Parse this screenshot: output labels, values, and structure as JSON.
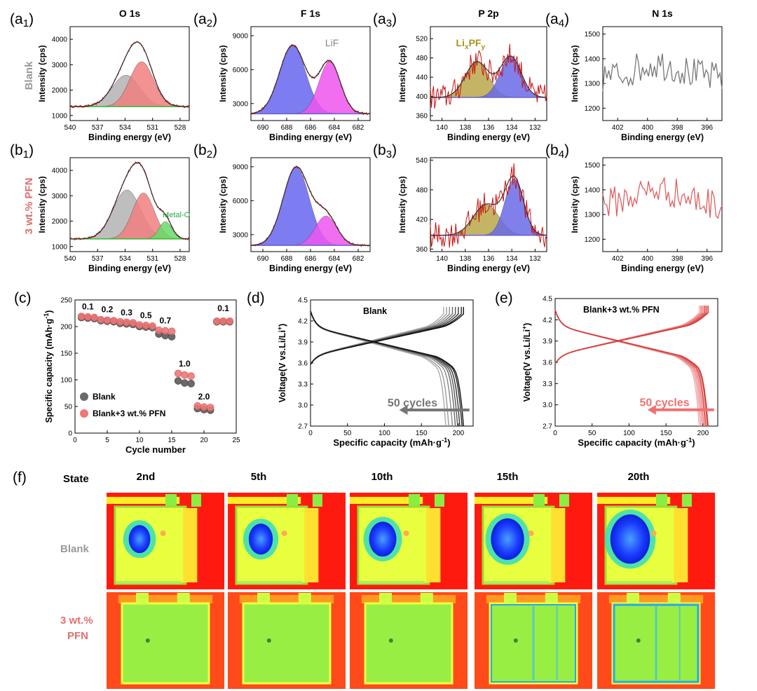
{
  "xps": {
    "columns": [
      "O 1s",
      "F 1s",
      "P 2p",
      "N 1s"
    ],
    "row_labels": [
      "Blank",
      "3 wt.% PFN"
    ],
    "ylabels": [
      "Intensity (cps)",
      "Intensity (cps)",
      "Intensity (cps)",
      "Intensity (cps)"
    ],
    "xlabel": "Binding energy (eV)",
    "annotations": {
      "lif": "LiF",
      "lipf_main": "Li",
      "lipf_sub1": "x",
      "lipf_mid": "PF",
      "lipf_sub2": "y",
      "metal_o": "Metal-O"
    },
    "panels": [
      {
        "id": "a1",
        "letter": "a",
        "sub": "1",
        "xticks": [
          "540",
          "537",
          "534",
          "531",
          "528"
        ],
        "yticks": [
          "1000",
          "2000",
          "3000",
          "4000"
        ]
      },
      {
        "id": "a2",
        "letter": "a",
        "sub": "2",
        "xticks": [
          "690",
          "688",
          "686",
          "684",
          "682"
        ],
        "yticks": [
          "3000",
          "6000",
          "9000"
        ]
      },
      {
        "id": "a3",
        "letter": "a",
        "sub": "3",
        "xticks": [
          "140",
          "138",
          "136",
          "134",
          "132"
        ],
        "yticks": [
          "360",
          "400",
          "440",
          "480",
          "520"
        ]
      },
      {
        "id": "a4",
        "letter": "a",
        "sub": "4",
        "xticks": [
          "402",
          "400",
          "398",
          "396"
        ],
        "yticks": [
          "1200",
          "1300",
          "1400",
          "1500"
        ]
      },
      {
        "id": "b1",
        "letter": "b",
        "sub": "1",
        "xticks": [
          "540",
          "537",
          "534",
          "531",
          "528"
        ],
        "yticks": [
          "1000",
          "2000",
          "3000",
          "4000"
        ]
      },
      {
        "id": "b2",
        "letter": "b",
        "sub": "2",
        "xticks": [
          "690",
          "688",
          "686",
          "684",
          "682"
        ],
        "yticks": [
          "3000",
          "6000",
          "9000"
        ]
      },
      {
        "id": "b3",
        "letter": "b",
        "sub": "3",
        "xticks": [
          "140",
          "138",
          "136",
          "134",
          "132"
        ],
        "yticks": [
          "360",
          "420",
          "480",
          "540"
        ]
      },
      {
        "id": "b4",
        "letter": "b",
        "sub": "4",
        "xticks": [
          "402",
          "400",
          "398",
          "396"
        ],
        "yticks": [
          "1200",
          "1300",
          "1400",
          "1500"
        ]
      }
    ]
  },
  "panel_c": {
    "label": "(c)",
    "xlabel": "Cycle number",
    "ylabel": "Specific capacity (mAh·g",
    "ylabel_sup": "-1",
    "ylabel_end": ")",
    "xticks": [
      "0",
      "5",
      "10",
      "15",
      "20",
      "25"
    ],
    "yticks": [
      "0",
      "50",
      "100",
      "150",
      "200",
      "250"
    ],
    "rate_labels": [
      "0.1",
      "0.2",
      "0.3",
      "0.5",
      "0.7",
      "1.0",
      "2.0",
      "0.1"
    ],
    "legend": [
      "Blank",
      "Blank+3 wt.% PFN"
    ]
  },
  "panel_d": {
    "label": "(d)",
    "title": "Blank",
    "annotation": "50 cycles",
    "xlabel": "Specific capacity (mAh·g",
    "xlabel_sup": "-1",
    "xlabel_end": ")",
    "ylabel": "Voltage(V vs.Li/Li",
    "ylabel_sup": "+",
    "ylabel_end": ")",
    "xticks": [
      "0",
      "50",
      "100",
      "150",
      "200"
    ],
    "yticks": [
      "2.7",
      "3.0",
      "3.3",
      "3.6",
      "3.9",
      "4.2",
      "4.5"
    ]
  },
  "panel_e": {
    "label": "(e)",
    "title": "Blank+3 wt.% PFN",
    "annotation": "50 cycles",
    "xlabel": "Specific capacity (mAh·g",
    "xlabel_sup": "-1",
    "xlabel_end": ")",
    "ylabel": "Voltage(V vs.Li/Li",
    "ylabel_sup": "+",
    "ylabel_end": ")",
    "xticks": [
      "0",
      "50",
      "100",
      "150",
      "200"
    ],
    "yticks": [
      "2.7",
      "3.0",
      "3.3",
      "3.6",
      "3.9",
      "4.2",
      "4.5"
    ]
  },
  "panel_f": {
    "label": "(f)",
    "state_label": "State",
    "columns": [
      "2nd",
      "5th",
      "10th",
      "15th",
      "20th"
    ],
    "row_blank": "Blank",
    "row_pfn_line1": "3 wt.%",
    "row_pfn_line2": "PFN"
  },
  "chart_data": [
    {
      "type": "bar",
      "id": "c",
      "note": "rate capability",
      "xlabel": "Cycle number",
      "ylabel": "Specific capacity (mAh·g-1)",
      "xlim": [
        0,
        25
      ],
      "ylim": [
        0,
        250
      ],
      "series": [
        {
          "name": "Blank",
          "x": [
            1,
            2,
            3,
            4,
            5,
            6,
            7,
            8,
            9,
            10,
            11,
            12,
            13,
            14,
            15,
            16,
            17,
            18,
            19,
            20,
            21,
            22,
            23,
            24
          ],
          "y": [
            217,
            216,
            215,
            211,
            210,
            209,
            206,
            205,
            204,
            200,
            199,
            198,
            186,
            183,
            181,
            98,
            94,
            93,
            46,
            44,
            43,
            209,
            209,
            209
          ]
        },
        {
          "name": "Blank+3 wt.% PFN",
          "x": [
            1,
            2,
            3,
            4,
            5,
            6,
            7,
            8,
            9,
            10,
            11,
            12,
            13,
            14,
            15,
            16,
            17,
            18,
            19,
            20,
            21,
            22,
            23,
            24
          ],
          "y": [
            219,
            218,
            217,
            213,
            212,
            211,
            209,
            208,
            207,
            203,
            202,
            201,
            193,
            192,
            191,
            112,
            109,
            107,
            51,
            49,
            48,
            210,
            210,
            210
          ]
        }
      ]
    },
    {
      "type": "line",
      "id": "d",
      "xlim": [
        0,
        220
      ],
      "ylim": [
        2.7,
        4.5
      ],
      "discharge_end_capacity": [
        207,
        205,
        202,
        199,
        196,
        192,
        187,
        183
      ],
      "charge_end_capacity": [
        207,
        204,
        200,
        196,
        192,
        188,
        184,
        180
      ]
    },
    {
      "type": "line",
      "id": "e",
      "xlim": [
        0,
        220
      ],
      "ylim": [
        2.7,
        4.5
      ],
      "discharge_end_capacity": [
        207,
        206,
        204,
        203,
        201,
        199,
        197,
        195
      ],
      "charge_end_capacity": [
        207,
        205,
        203,
        202,
        200,
        198,
        197,
        195
      ]
    },
    {
      "type": "line",
      "id": "a1",
      "x_range": [
        540,
        527
      ],
      "y_range": [
        800,
        4500
      ],
      "peaks": [
        {
          "center": 533.9,
          "height": 2590,
          "width": 1.5,
          "color": "#b3b3b3"
        },
        {
          "center": 532.2,
          "height": 3120,
          "width": 1.3,
          "color": "#f07f7f"
        }
      ],
      "baseline": 1350
    },
    {
      "type": "line",
      "id": "b1",
      "x_range": [
        540,
        527
      ],
      "y_range": [
        800,
        4500
      ],
      "peaks": [
        {
          "center": 533.8,
          "height": 3230,
          "width": 1.5,
          "color": "#b3b3b3"
        },
        {
          "center": 532.0,
          "height": 3110,
          "width": 1.2,
          "color": "#f07f7f"
        },
        {
          "center": 529.6,
          "height": 1980,
          "width": 0.7,
          "color": "#66dd66"
        }
      ],
      "baseline": 1300
    },
    {
      "type": "line",
      "id": "a2",
      "x_range": [
        691,
        681
      ],
      "y_range": [
        1500,
        9800
      ],
      "peaks": [
        {
          "center": 687.5,
          "height": 8150,
          "width": 1.1,
          "color": "#6666ee"
        },
        {
          "center": 684.4,
          "height": 6700,
          "width": 0.9,
          "color": "#ee55ee"
        }
      ],
      "baseline": 2100
    },
    {
      "type": "line",
      "id": "b2",
      "x_range": [
        691,
        681
      ],
      "y_range": [
        1500,
        9800
      ],
      "peaks": [
        {
          "center": 687.2,
          "height": 8950,
          "width": 1.1,
          "color": "#6666ee"
        },
        {
          "center": 684.7,
          "height": 4650,
          "width": 0.9,
          "color": "#ee55ee"
        }
      ],
      "baseline": 2050
    },
    {
      "type": "line",
      "id": "a3",
      "x_range": [
        141,
        131
      ],
      "y_range": [
        350,
        545
      ],
      "peaks": [
        {
          "center": 137.0,
          "height": 472,
          "width": 1.0,
          "color": "#b8a84a"
        },
        {
          "center": 134.1,
          "height": 483,
          "width": 0.9,
          "color": "#6a6ae8"
        }
      ],
      "baseline": 398
    },
    {
      "type": "line",
      "id": "b3",
      "x_range": [
        141,
        131
      ],
      "y_range": [
        355,
        545
      ],
      "peaks": [
        {
          "center": 136.2,
          "height": 450,
          "width": 1.1,
          "color": "#b8a84a"
        },
        {
          "center": 133.8,
          "height": 502,
          "width": 0.8,
          "color": "#6a6ae8"
        }
      ],
      "baseline": 388
    },
    {
      "type": "line",
      "id": "a4",
      "x_range": [
        403,
        395
      ],
      "y_range": [
        1150,
        1530
      ],
      "noise_level": 1320,
      "color": "#777777"
    },
    {
      "type": "line",
      "id": "b4",
      "x_range": [
        403,
        395
      ],
      "y_range": [
        1150,
        1530
      ],
      "noise_level": 1340,
      "color": "#e06060"
    }
  ]
}
